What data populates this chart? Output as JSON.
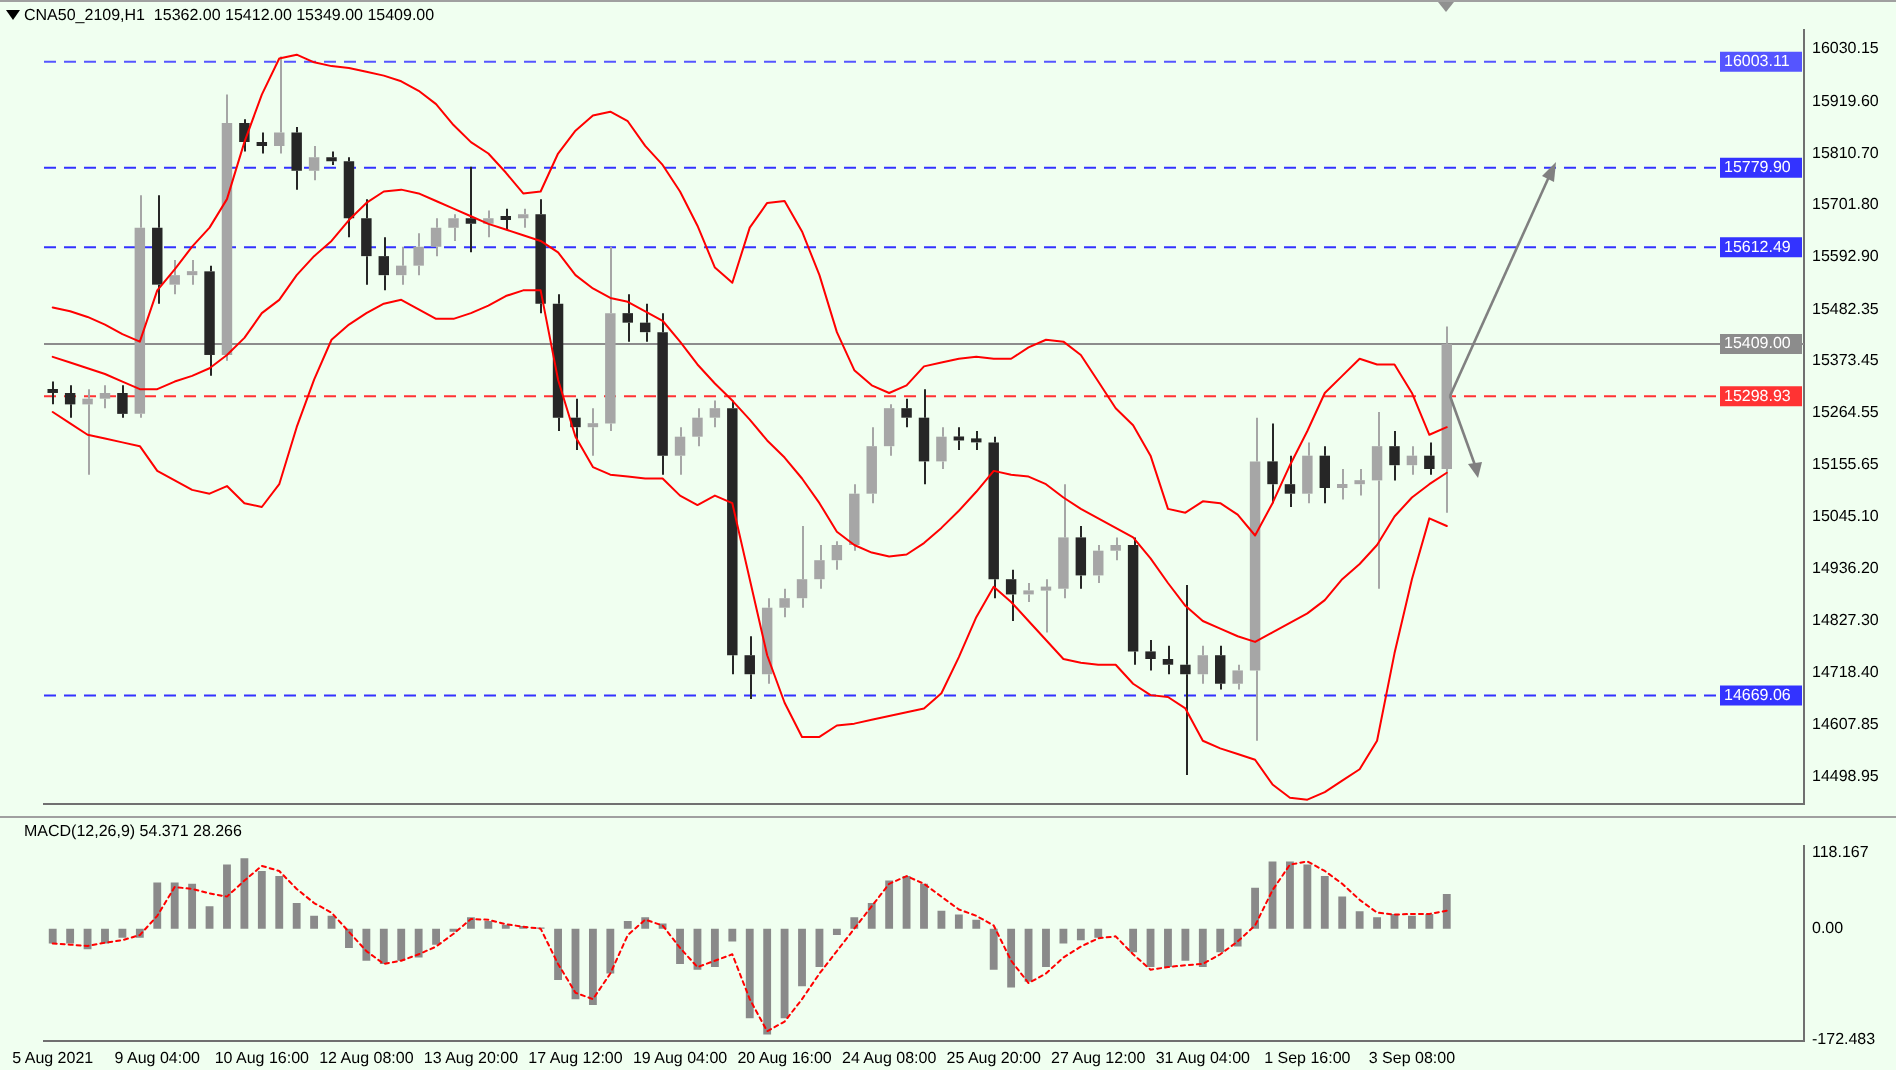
{
  "chart_data": [
    {
      "type": "candlestick",
      "title": "CNA50_2109,H1  15362.00 15412.00 15349.00 15409.00",
      "colors": [
        "#262626",
        "#262626",
        "#a6a6a6",
        "#a6a6a6",
        "#262626",
        "#a6a6a6",
        "#262626",
        "#a6a6a6",
        "#a6a6a6",
        "#262626",
        "#a6a6a6",
        "#262626",
        "#262626",
        "#a6a6a6",
        "#262626",
        "#a6a6a6",
        "#262626",
        "#262626",
        "#262626",
        "#262626",
        "#a6a6a6",
        "#a6a6a6",
        "#a6a6a6",
        "#a6a6a6",
        "#262626",
        "#a6a6a6",
        "#262626",
        "#a6a6a6",
        "#262626",
        "#262626",
        "#262626",
        "#a6a6a6",
        "#a6a6a6",
        "#262626",
        "#262626",
        "#262626",
        "#a6a6a6",
        "#a6a6a6",
        "#a6a6a6",
        "#262626",
        "#262626",
        "#a6a6a6",
        "#a6a6a6",
        "#a6a6a6",
        "#a6a6a6",
        "#a6a6a6",
        "#a6a6a6",
        "#a6a6a6",
        "#a6a6a6",
        "#262626",
        "#262626",
        "#a6a6a6",
        "#262626",
        "#262626",
        "#262626",
        "#262626",
        "#a6a6a6",
        "#a6a6a6",
        "#a6a6a6",
        "#262626",
        "#a6a6a6",
        "#a6a6a6",
        "#262626",
        "#262626",
        "#262626",
        "#262626",
        "#a6a6a6",
        "#262626",
        "#a6a6a6",
        "#a6a6a6",
        "#262626",
        "#262626",
        "#a6a6a6",
        "#262626",
        "#a6a6a6",
        "#a6a6a6",
        "#a6a6a6",
        "#262626",
        "#a6a6a6",
        "#262626",
        "#a6a6a6",
        null,
        null,
        null,
        null,
        null,
        null,
        null,
        null,
        null,
        null,
        null,
        null,
        null,
        null,
        null,
        null,
        null,
        null,
        null,
        null
      ],
      "marker": "none",
      "tick_labels": "y",
      "categories": [
        null,
        null,
        null,
        null,
        null,
        null,
        null,
        null,
        null,
        null,
        null,
        null,
        null,
        null,
        null,
        null,
        null,
        null,
        null,
        null,
        null,
        null,
        null,
        null,
        null,
        null,
        null,
        null,
        null,
        null,
        null,
        null,
        null,
        null,
        null,
        null,
        null,
        null,
        null,
        null,
        null,
        null,
        null,
        null,
        null,
        null,
        null,
        null,
        null,
        null,
        null,
        null,
        null,
        null,
        null,
        null,
        null,
        null,
        null,
        null,
        null,
        null,
        null,
        null,
        null,
        null,
        null,
        null,
        null,
        null,
        null,
        null,
        null,
        null,
        null,
        null,
        null,
        null,
        null,
        null,
        null,
        null,
        null,
        null,
        null,
        null,
        null,
        null,
        null,
        null,
        null,
        null,
        null,
        null,
        null,
        null,
        null,
        null,
        null,
        null,
        null
      ],
      "ohlc": [
        [
          15314,
          15330,
          15282,
          15306
        ],
        [
          15306,
          15322,
          15254,
          15282
        ],
        [
          15282,
          15314,
          15134,
          15294
        ],
        [
          15294,
          15322,
          15274,
          15306
        ],
        [
          15306,
          15322,
          15254,
          15262
        ],
        [
          15262,
          15722,
          15254,
          15654
        ],
        [
          15654,
          15722,
          15494,
          15534
        ],
        [
          15534,
          15586,
          15514,
          15554
        ],
        [
          15554,
          15586,
          15534,
          15562
        ],
        [
          15562,
          15574,
          15342,
          15386
        ],
        [
          15386,
          15934,
          15374,
          15874
        ],
        [
          15874,
          15882,
          15814,
          15834
        ],
        [
          15834,
          15854,
          15810,
          15826
        ],
        [
          15826,
          16014,
          15810,
          15854
        ],
        [
          15854,
          15866,
          15734,
          15774
        ],
        [
          15774,
          15826,
          15754,
          15802
        ],
        [
          15802,
          15814,
          15786,
          15794
        ],
        [
          15794,
          15802,
          15634,
          15674
        ],
        [
          15674,
          15714,
          15534,
          15594
        ],
        [
          15594,
          15634,
          15522,
          15554
        ],
        [
          15554,
          15614,
          15534,
          15574
        ],
        [
          15574,
          15642,
          15554,
          15614
        ],
        [
          15614,
          15674,
          15594,
          15654
        ],
        [
          15654,
          15682,
          15626,
          15674
        ],
        [
          15674,
          15782,
          15602,
          15662
        ],
        [
          15662,
          15690,
          15634,
          15674
        ],
        [
          15674,
          15694,
          15650,
          15670
        ],
        [
          15674,
          15694,
          15654,
          15682
        ],
        [
          15682,
          15714,
          15474,
          15494
        ],
        [
          15494,
          15514,
          15226,
          15254
        ],
        [
          15254,
          15294,
          15186,
          15234
        ],
        [
          15234,
          15274,
          15174,
          15242
        ],
        [
          15242,
          15614,
          15226,
          15474
        ],
        [
          15474,
          15514,
          15414,
          15454
        ],
        [
          15454,
          15494,
          15414,
          15434
        ],
        [
          15434,
          15474,
          15134,
          15174
        ],
        [
          15174,
          15234,
          15134,
          15214
        ],
        [
          15214,
          15274,
          15194,
          15254
        ],
        [
          15254,
          15290,
          15234,
          15274
        ],
        [
          15274,
          15290,
          14714,
          14754
        ],
        [
          14754,
          14794,
          14662,
          14714
        ],
        [
          14714,
          14874,
          14694,
          14854
        ],
        [
          14854,
          14894,
          14834,
          14874
        ],
        [
          14874,
          15026,
          14854,
          14914
        ],
        [
          14914,
          14986,
          14894,
          14954
        ],
        [
          14954,
          14994,
          14934,
          14986
        ],
        [
          14986,
          15114,
          14974,
          15094
        ],
        [
          15094,
          15234,
          15074,
          15194
        ],
        [
          15194,
          15282,
          15174,
          15274
        ],
        [
          15274,
          15294,
          15234,
          15254
        ],
        [
          15254,
          15314,
          15114,
          15162
        ],
        [
          15162,
          15234,
          15146,
          15214
        ],
        [
          15214,
          15234,
          15186,
          15206
        ],
        [
          15206,
          15226,
          15186,
          15202
        ],
        [
          15202,
          15214,
          14874,
          14914
        ],
        [
          14914,
          14934,
          14826,
          14882
        ],
        [
          14882,
          14906,
          14866,
          14890
        ],
        [
          14890,
          14914,
          14802,
          14894
        ],
        [
          14894,
          15114,
          14874,
          15002
        ],
        [
          15002,
          15026,
          14894,
          14922
        ],
        [
          14922,
          14986,
          14906,
          14974
        ],
        [
          14974,
          15002,
          14954,
          14986
        ],
        [
          14986,
          15002,
          14734,
          14762
        ],
        [
          14762,
          14786,
          14722,
          14746
        ],
        [
          14746,
          14774,
          14714,
          14734
        ],
        [
          14734,
          14902,
          14502,
          14714
        ],
        [
          14714,
          14774,
          14694,
          14754
        ],
        [
          14754,
          14774,
          14682,
          14694
        ],
        [
          14694,
          14734,
          14682,
          14722
        ],
        [
          14722,
          15254,
          14574,
          15162
        ],
        [
          15162,
          15242,
          15074,
          15114
        ],
        [
          15114,
          15174,
          15066,
          15094
        ],
        [
          15094,
          15202,
          15074,
          15174
        ],
        [
          15174,
          15194,
          15074,
          15106
        ],
        [
          15106,
          15146,
          15082,
          15114
        ],
        [
          15114,
          15146,
          15090,
          15122
        ],
        [
          15122,
          15266,
          14894,
          15194
        ],
        [
          15194,
          15226,
          15122,
          15154
        ],
        [
          15154,
          15194,
          15134,
          15174
        ],
        [
          15174,
          15202,
          15134,
          15146
        ],
        [
          15146,
          15446,
          15054,
          15409
        ],
        null,
        null,
        null,
        null,
        null,
        null,
        null,
        null,
        null,
        null,
        null,
        null,
        null,
        null,
        null,
        null,
        null,
        null,
        null,
        null
      ],
      "series": [
        {
          "type": "line",
          "color": "#ff0000",
          "line_style": "solid",
          "values": [
            15486,
            15478,
            15466,
            15450,
            15430,
            15414,
            15522,
            15566,
            15614,
            15654,
            15714,
            15834,
            15934,
            16010,
            16018,
            16002,
            15994,
            15990,
            15982,
            15974,
            15962,
            15942,
            15914,
            15870,
            15834,
            15810,
            15770,
            15726,
            15730,
            15810,
            15858,
            15890,
            15898,
            15878,
            15826,
            15786,
            15730,
            15658,
            15570,
            15538,
            15654,
            15706,
            15710,
            15646,
            15554,
            15434,
            15354,
            15322,
            15306,
            15322,
            15362,
            15370,
            15378,
            15382,
            15378,
            15378,
            15402,
            15418,
            15414,
            15386,
            15330,
            15274,
            15238,
            15174,
            15062,
            15054,
            15078,
            15074,
            15050,
            15006,
            15074,
            15154,
            15226,
            15306,
            15342,
            15378,
            15366,
            15366,
            15306,
            15218,
            15234,
            null,
            null,
            null,
            null,
            null,
            null,
            null,
            null,
            null,
            null,
            null,
            null,
            null,
            null,
            null,
            null,
            null,
            null,
            null,
            null
          ]
        },
        {
          "type": "line",
          "color": "#ff0000",
          "line_style": "solid",
          "values": [
            15382,
            15370,
            15358,
            15346,
            15330,
            15314,
            15314,
            15330,
            15342,
            15358,
            15386,
            15422,
            15474,
            15502,
            15554,
            15594,
            15626,
            15670,
            15706,
            15730,
            15734,
            15726,
            15710,
            15694,
            15678,
            15662,
            15650,
            15638,
            15626,
            15602,
            15554,
            15526,
            15506,
            15498,
            15478,
            15458,
            15414,
            15366,
            15326,
            15290,
            15250,
            15206,
            15170,
            15126,
            15074,
            15014,
            14986,
            14970,
            14962,
            14966,
            14990,
            15022,
            15058,
            15098,
            15142,
            15134,
            15130,
            15114,
            15086,
            15062,
            15042,
            15022,
            15002,
            14958,
            14906,
            14858,
            14826,
            14810,
            14794,
            14782,
            14802,
            14822,
            14842,
            14870,
            14914,
            14946,
            14986,
            15046,
            15086,
            15114,
            15138,
            null,
            null,
            null,
            null,
            null,
            null,
            null,
            null,
            null,
            null,
            null,
            null,
            null,
            null,
            null,
            null,
            null,
            null,
            null,
            null
          ]
        },
        {
          "type": "line",
          "color": "#ff0000",
          "line_style": "solid",
          "values": [
            15266,
            15242,
            15218,
            15210,
            15202,
            15194,
            15142,
            15122,
            15102,
            15094,
            15110,
            15074,
            15066,
            15114,
            15234,
            15334,
            15418,
            15450,
            15474,
            15494,
            15502,
            15482,
            15462,
            15462,
            15474,
            15490,
            15510,
            15522,
            15522,
            15334,
            15214,
            15150,
            15134,
            15130,
            15126,
            15126,
            15090,
            15070,
            15090,
            15074,
            14914,
            14754,
            14654,
            14582,
            14582,
            14606,
            14610,
            14618,
            14626,
            14634,
            14642,
            14674,
            14750,
            14834,
            14898,
            14866,
            14826,
            14786,
            14746,
            14738,
            14734,
            14734,
            14694,
            14670,
            14666,
            14642,
            14574,
            14558,
            14546,
            14534,
            14482,
            14454,
            14450,
            14466,
            14490,
            14514,
            14574,
            14758,
            14914,
            15042,
            15026,
            null,
            null,
            null,
            null,
            null,
            null,
            null,
            null,
            null,
            null,
            null,
            null,
            null,
            null,
            null,
            null,
            null,
            null,
            null,
            null
          ]
        }
      ],
      "ylim": [
        14440,
        16070
      ],
      "yticks": [
        {
          "value": 16030.15,
          "label": "16030.15"
        },
        {
          "value": 15919.6,
          "label": "15919.60"
        },
        {
          "value": 15810.7,
          "label": "15810.70"
        },
        {
          "value": 15701.8,
          "label": "15701.80"
        },
        {
          "value": 15592.9,
          "label": "15592.90"
        },
        {
          "value": 15482.35,
          "label": "15482.35"
        },
        {
          "value": 15373.45,
          "label": "15373.45"
        },
        {
          "value": 15264.55,
          "label": "15264.55"
        },
        {
          "value": 15155.65,
          "label": "15155.65"
        },
        {
          "value": 15045.1,
          "label": "15045.10"
        },
        {
          "value": 14936.2,
          "label": "14936.20"
        },
        {
          "value": 14827.3,
          "label": "14827.30"
        },
        {
          "value": 14718.4,
          "label": "14718.40"
        },
        {
          "value": 14607.85,
          "label": "14607.85"
        },
        {
          "value": 14498.95,
          "label": "14498.95"
        }
      ],
      "ref_lines": [
        {
          "axis": "y",
          "value": 16003.11,
          "label": "16003.11",
          "color": "#5555ff",
          "line_style": "dashed"
        },
        {
          "axis": "y",
          "value": 15779.9,
          "label": "15779.90",
          "color": "#3333ff",
          "line_style": "dashed"
        },
        {
          "axis": "y",
          "value": 15612.49,
          "label": "15612.49",
          "color": "#3333ff",
          "line_style": "dashed"
        },
        {
          "axis": "y",
          "value": 15409,
          "label": "15409.00",
          "color": "#8c8c8c",
          "line_style": "solid"
        },
        {
          "axis": "y",
          "value": 15298.93,
          "label": "15298.93",
          "color": "#ff3333",
          "line_style": "dashed"
        },
        {
          "axis": "y",
          "value": 14669.06,
          "label": "14669.06",
          "color": "#3333ff",
          "line_style": "dashed"
        }
      ]
    },
    {
      "type": "bar",
      "title": "MACD(12,26,9) 54.371 28.266",
      "marker": "none",
      "categories": [
        "5 Aug 2021",
        null,
        null,
        null,
        null,
        null,
        "9 Aug 04:00",
        null,
        null,
        null,
        null,
        null,
        "10 Aug 16:00",
        null,
        null,
        null,
        null,
        null,
        "12 Aug 08:00",
        null,
        null,
        null,
        null,
        null,
        "13 Aug 20:00",
        null,
        null,
        null,
        null,
        null,
        "17 Aug 12:00",
        null,
        null,
        null,
        null,
        null,
        "19 Aug 04:00",
        null,
        null,
        null,
        null,
        null,
        "20 Aug 16:00",
        null,
        null,
        null,
        null,
        null,
        "24 Aug 08:00",
        null,
        null,
        null,
        null,
        null,
        "25 Aug 20:00",
        null,
        null,
        null,
        null,
        null,
        "27 Aug 12:00",
        null,
        null,
        null,
        null,
        null,
        "31 Aug 04:00",
        null,
        null,
        null,
        null,
        null,
        "1 Sep 16:00",
        null,
        null,
        null,
        null,
        null,
        "3 Sep 08:00",
        null,
        null,
        null,
        null,
        null,
        null,
        null,
        null,
        null,
        null,
        null,
        null,
        null,
        null,
        null,
        null,
        null,
        null,
        null,
        null,
        null,
        null
      ],
      "series": [
        {
          "type": "bar",
          "color": "#8a8a8a",
          "values": [
            -23,
            -23,
            -32,
            -23,
            -14,
            -14,
            72,
            72,
            70,
            35,
            100,
            110,
            90,
            82,
            40,
            20,
            20,
            -30,
            -50,
            -55,
            -50,
            -45,
            -25,
            -5,
            18,
            12,
            6,
            4,
            2,
            -80,
            -110,
            -119,
            -70,
            12,
            18,
            8,
            -55,
            -64,
            -60,
            -20,
            -140,
            -165,
            -140,
            -90,
            -60,
            -10,
            18,
            40,
            75,
            82,
            70,
            28,
            22,
            14,
            -64,
            -92,
            -83,
            -60,
            -23,
            -18,
            -14,
            0,
            -37,
            -60,
            -60,
            -50,
            -60,
            -37,
            -28,
            64,
            105,
            105,
            100,
            82,
            50,
            27,
            18,
            23,
            20,
            23,
            54,
            null,
            null,
            null,
            null,
            null,
            null,
            null,
            null,
            null,
            null,
            null,
            null,
            null,
            null,
            null,
            null,
            null,
            null,
            null,
            null
          ]
        },
        {
          "type": "line",
          "color": "#ff0000",
          "line_style": "dotted",
          "values": [
            -23,
            -25,
            -27,
            -22,
            -18,
            -10,
            20,
            65,
            62,
            55,
            50,
            75,
            98,
            90,
            62,
            40,
            25,
            -5,
            -35,
            -55,
            -50,
            -40,
            -28,
            -8,
            15,
            14,
            7,
            3,
            0,
            -55,
            -100,
            -110,
            -70,
            -10,
            14,
            5,
            -30,
            -60,
            -50,
            -40,
            -110,
            -160,
            -145,
            -110,
            -70,
            -35,
            0,
            35,
            70,
            82,
            70,
            50,
            30,
            20,
            5,
            -50,
            -85,
            -70,
            -45,
            -28,
            -15,
            -12,
            -40,
            -64,
            -60,
            -57,
            -55,
            -40,
            -20,
            5,
            60,
            100,
            105,
            90,
            70,
            45,
            25,
            22,
            23,
            23,
            28,
            null,
            null,
            null,
            null,
            null,
            null,
            null,
            null,
            null,
            null,
            null,
            null,
            null,
            null,
            null,
            null,
            null,
            null,
            null,
            null
          ]
        }
      ],
      "ylim": [
        -175,
        129
      ],
      "yticks": [
        118.167,
        {
          "value": 0,
          "label": "0.00"
        },
        -172.483
      ]
    }
  ]
}
